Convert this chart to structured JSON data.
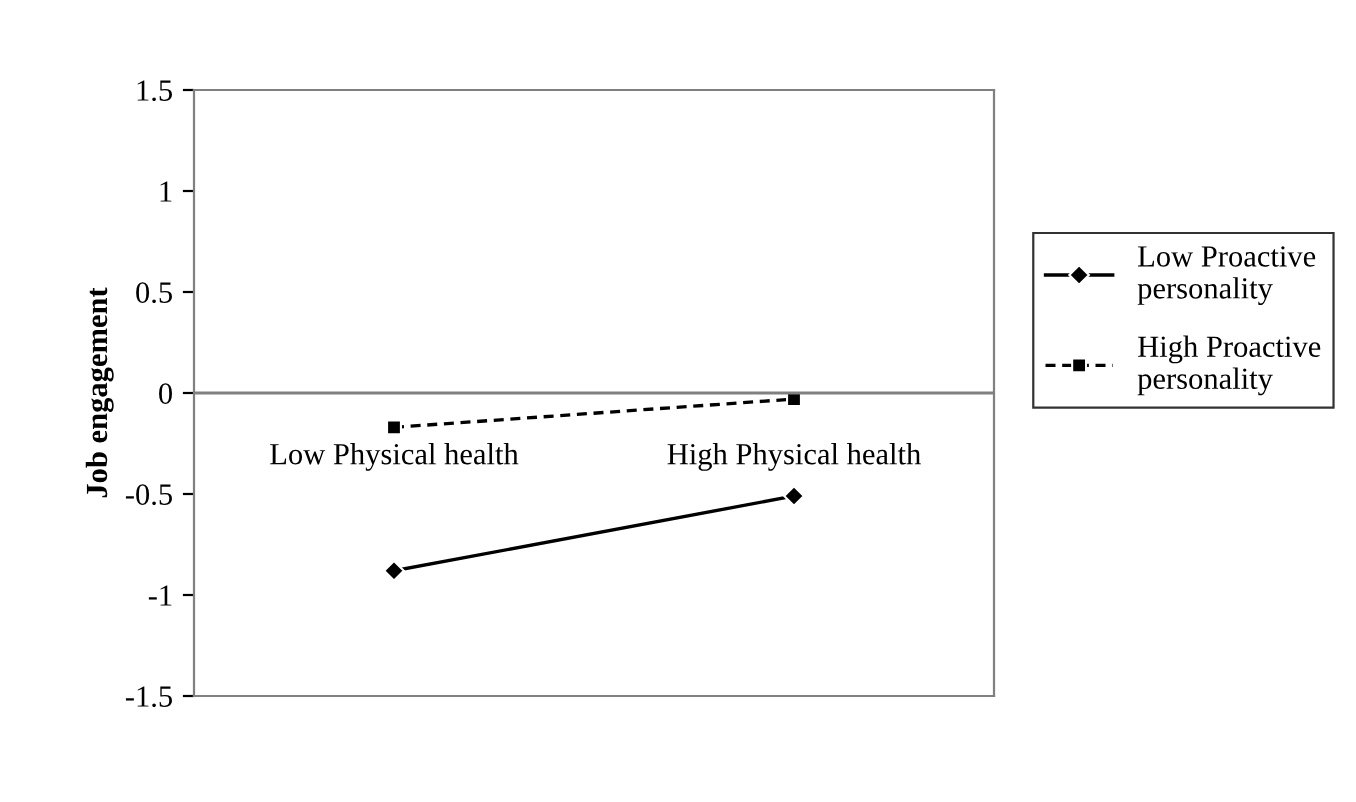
{
  "chart_data": {
    "type": "line",
    "ylabel": "Job engagement",
    "categories": [
      "Low Physical health",
      "High Physical health"
    ],
    "series": [
      {
        "name": "Low Proactive personality",
        "color": "#000000",
        "values": [
          -0.88,
          -0.51
        ],
        "marker": "diamond",
        "line_style": "solid"
      },
      {
        "name": "High Proactive personality",
        "color": "#000000",
        "values": [
          -0.17,
          -0.03
        ],
        "marker": "square",
        "line_style": "dashed"
      }
    ],
    "ylim": [
      -1.5,
      1.5
    ],
    "yticks": [
      1.5,
      1,
      0.5,
      0,
      -0.5,
      -1,
      -1.5
    ],
    "grid": false,
    "legend": "right"
  }
}
